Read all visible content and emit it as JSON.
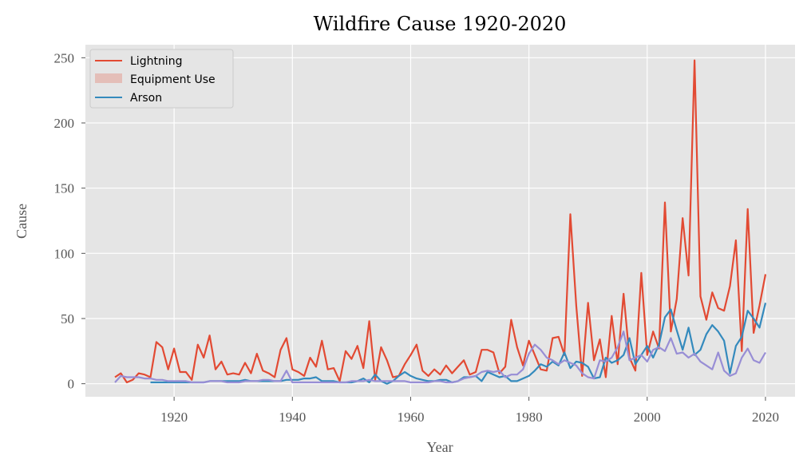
{
  "chart_data": {
    "type": "line",
    "title": "Wildfire Cause 1920-2020",
    "xlabel": "Year",
    "ylabel": "Cause",
    "xlim": [
      1905,
      2025
    ],
    "ylim": [
      -10,
      260
    ],
    "xticks": [
      1920,
      1940,
      1960,
      1980,
      2000,
      2020
    ],
    "yticks": [
      0,
      50,
      100,
      150,
      200,
      250
    ],
    "grid": true,
    "legend_position": "top-left",
    "legend": [
      {
        "label": "Lightning",
        "kind": "line",
        "color": "#E24A33"
      },
      {
        "label": "Equipment Use",
        "kind": "patch",
        "color": "#E24A33"
      },
      {
        "label": "Arson",
        "kind": "line",
        "color": "#348ABD"
      }
    ],
    "series": [
      {
        "name": "Lightning",
        "color": "#E24A33",
        "x": [
          1910,
          1911,
          1912,
          1913,
          1914,
          1915,
          1916,
          1917,
          1918,
          1919,
          1920,
          1921,
          1922,
          1923,
          1924,
          1925,
          1926,
          1927,
          1928,
          1929,
          1930,
          1931,
          1932,
          1933,
          1934,
          1935,
          1936,
          1937,
          1938,
          1939,
          1940,
          1941,
          1942,
          1943,
          1944,
          1945,
          1946,
          1947,
          1948,
          1949,
          1950,
          1951,
          1952,
          1953,
          1954,
          1955,
          1956,
          1957,
          1958,
          1959,
          1960,
          1961,
          1962,
          1963,
          1964,
          1965,
          1966,
          1967,
          1968,
          1969,
          1970,
          1971,
          1972,
          1973,
          1974,
          1975,
          1976,
          1977,
          1978,
          1979,
          1980,
          1981,
          1982,
          1983,
          1984,
          1985,
          1986,
          1987,
          1988,
          1989,
          1990,
          1991,
          1992,
          1993,
          1994,
          1995,
          1996,
          1997,
          1998,
          1999,
          2000,
          2001,
          2002,
          2003,
          2004,
          2005,
          2006,
          2007,
          2008,
          2009,
          2010,
          2011,
          2012,
          2013,
          2014,
          2015,
          2016,
          2017,
          2018,
          2019,
          2020
        ],
        "values": [
          5,
          8,
          1,
          3,
          8,
          7,
          5,
          32,
          28,
          11,
          27,
          9,
          9,
          3,
          30,
          20,
          37,
          11,
          17,
          7,
          8,
          7,
          16,
          8,
          23,
          10,
          8,
          5,
          26,
          35,
          11,
          9,
          6,
          20,
          13,
          33,
          11,
          12,
          2,
          25,
          19,
          29,
          12,
          48,
          3,
          28,
          18,
          5,
          6,
          15,
          22,
          30,
          10,
          6,
          11,
          7,
          14,
          8,
          13,
          18,
          7,
          9,
          26,
          26,
          24,
          8,
          13,
          49,
          28,
          14,
          33,
          22,
          11,
          10,
          35,
          36,
          22,
          130,
          60,
          6,
          62,
          18,
          34,
          5,
          52,
          15,
          69,
          20,
          10,
          85,
          22,
          40,
          27,
          139,
          40,
          65,
          127,
          83,
          248,
          67,
          49,
          70,
          58,
          56,
          75,
          110,
          25,
          134,
          39,
          60,
          84
        ]
      },
      {
        "name": "Arson",
        "color": "#348ABD",
        "x": [
          1916,
          1917,
          1918,
          1919,
          1920,
          1921,
          1922,
          1923,
          1924,
          1925,
          1926,
          1927,
          1928,
          1929,
          1930,
          1931,
          1932,
          1933,
          1934,
          1935,
          1936,
          1937,
          1938,
          1939,
          1940,
          1941,
          1942,
          1943,
          1944,
          1945,
          1946,
          1947,
          1948,
          1949,
          1950,
          1951,
          1952,
          1953,
          1954,
          1955,
          1956,
          1957,
          1958,
          1959,
          1960,
          1961,
          1962,
          1963,
          1964,
          1965,
          1966,
          1967,
          1968,
          1969,
          1970,
          1971,
          1972,
          1973,
          1974,
          1975,
          1976,
          1977,
          1978,
          1979,
          1980,
          1981,
          1982,
          1983,
          1984,
          1985,
          1986,
          1987,
          1988,
          1989,
          1990,
          1991,
          1992,
          1993,
          1994,
          1995,
          1996,
          1997,
          1998,
          1999,
          2000,
          2001,
          2002,
          2003,
          2004,
          2005,
          2006,
          2007,
          2008,
          2009,
          2010,
          2011,
          2012,
          2013,
          2014,
          2015,
          2016,
          2017,
          2018,
          2019,
          2020
        ],
        "values": [
          1,
          1,
          1,
          1,
          1,
          1,
          1,
          1,
          1,
          1,
          2,
          2,
          2,
          2,
          2,
          2,
          3,
          2,
          2,
          2,
          2,
          2,
          2,
          3,
          3,
          3,
          4,
          4,
          5,
          2,
          2,
          2,
          1,
          1,
          1,
          2,
          4,
          1,
          7,
          2,
          0,
          2,
          6,
          9,
          6,
          4,
          3,
          2,
          2,
          3,
          3,
          1,
          2,
          5,
          5,
          6,
          2,
          9,
          7,
          5,
          6,
          2,
          2,
          4,
          6,
          10,
          15,
          13,
          17,
          14,
          24,
          12,
          17,
          16,
          13,
          4,
          5,
          20,
          16,
          18,
          22,
          35,
          15,
          22,
          29,
          20,
          30,
          51,
          57,
          41,
          26,
          43,
          22,
          26,
          38,
          45,
          40,
          33,
          8,
          29,
          36,
          56,
          50,
          43,
          62
        ]
      },
      {
        "name": "",
        "color": "#988ED5",
        "x": [
          1910,
          1911,
          1912,
          1913,
          1914,
          1915,
          1916,
          1917,
          1918,
          1919,
          1920,
          1921,
          1922,
          1923,
          1924,
          1925,
          1926,
          1927,
          1928,
          1929,
          1930,
          1931,
          1932,
          1933,
          1934,
          1935,
          1936,
          1937,
          1938,
          1939,
          1940,
          1941,
          1942,
          1943,
          1944,
          1945,
          1946,
          1947,
          1948,
          1949,
          1950,
          1951,
          1952,
          1953,
          1954,
          1955,
          1956,
          1957,
          1958,
          1959,
          1960,
          1961,
          1962,
          1963,
          1964,
          1965,
          1966,
          1967,
          1968,
          1969,
          1970,
          1971,
          1972,
          1973,
          1974,
          1975,
          1976,
          1977,
          1978,
          1979,
          1980,
          1981,
          1982,
          1983,
          1984,
          1985,
          1986,
          1987,
          1988,
          1989,
          1990,
          1991,
          1992,
          1993,
          1994,
          1995,
          1996,
          1997,
          1998,
          1999,
          2000,
          2001,
          2002,
          2003,
          2004,
          2005,
          2006,
          2007,
          2008,
          2009,
          2010,
          2011,
          2012,
          2013,
          2014,
          2015,
          2016,
          2017,
          2018,
          2019,
          2020
        ],
        "values": [
          1,
          6,
          5,
          5,
          5,
          4,
          4,
          3,
          3,
          2,
          2,
          2,
          2,
          1,
          1,
          1,
          2,
          2,
          2,
          1,
          1,
          1,
          2,
          2,
          2,
          3,
          3,
          2,
          2,
          10,
          1,
          1,
          1,
          1,
          1,
          1,
          1,
          1,
          1,
          1,
          2,
          2,
          2,
          3,
          2,
          2,
          2,
          2,
          2,
          2,
          1,
          1,
          1,
          1,
          2,
          2,
          1,
          1,
          2,
          4,
          5,
          6,
          9,
          10,
          9,
          10,
          5,
          7,
          7,
          11,
          23,
          30,
          26,
          20,
          18,
          15,
          18,
          16,
          14,
          8,
          5,
          4,
          18,
          17,
          20,
          28,
          40,
          18,
          20,
          22,
          17,
          26,
          28,
          25,
          35,
          23,
          24,
          20,
          23,
          17,
          14,
          11,
          24,
          10,
          6,
          8,
          20,
          27,
          18,
          16,
          24
        ]
      }
    ]
  }
}
